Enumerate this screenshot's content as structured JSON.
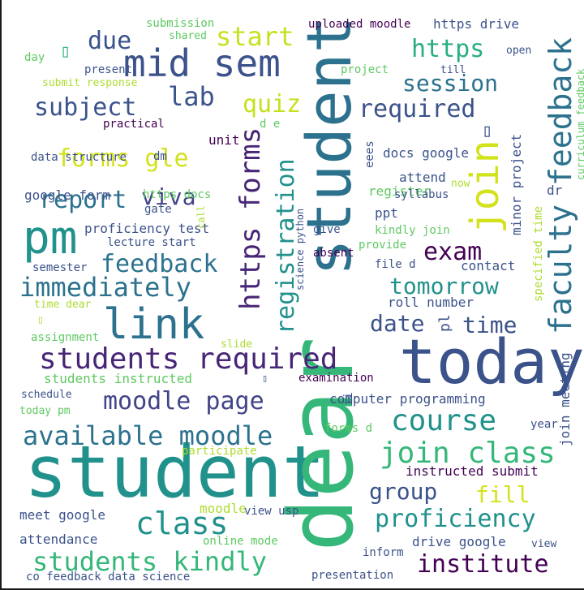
{
  "cloud": {
    "background": "#ffffff",
    "palette": [
      "#440154",
      "#482677",
      "#3b528b",
      "#2c728e",
      "#21918c",
      "#28ae80",
      "#5ec962",
      "#addc30",
      "#fde725"
    ],
    "words": [
      {
        "text": "student",
        "color": "#21918c"
      },
      {
        "text": "dear",
        "color": "#35b779"
      },
      {
        "text": "today",
        "color": "#3b528b"
      },
      {
        "text": "pm",
        "color": "#21918c"
      },
      {
        "text": "student",
        "color": "#2c728e"
      },
      {
        "text": "join",
        "color": "#d2e21b"
      },
      {
        "text": "faculty feedback",
        "color": "#2c728e"
      },
      {
        "text": "mid sem",
        "color": "#3b528b"
      },
      {
        "text": "link",
        "color": "#2c728e"
      },
      {
        "text": "students required",
        "color": "#482677"
      },
      {
        "text": "https forms",
        "color": "#482677"
      },
      {
        "text": "registration",
        "color": "#21918c"
      },
      {
        "text": "join class",
        "color": "#35b779"
      },
      {
        "text": "available moodle",
        "color": "#2c728e"
      },
      {
        "text": "course",
        "color": "#21918c"
      },
      {
        "text": "students kindly",
        "color": "#35b779"
      },
      {
        "text": "proficiency",
        "color": "#21918c"
      },
      {
        "text": "institute",
        "color": "#440154"
      },
      {
        "text": "class",
        "color": "#21918c"
      },
      {
        "text": "moodle page",
        "color": "#414487"
      },
      {
        "text": "immediately",
        "color": "#2c728e"
      },
      {
        "text": "report",
        "color": "#2c728e"
      },
      {
        "text": "feedback",
        "color": "#2c728e"
      },
      {
        "text": "subject",
        "color": "#3b528b"
      },
      {
        "text": "forms gle",
        "color": "#d2e21b"
      },
      {
        "text": "viva",
        "color": "#414487"
      },
      {
        "text": "lab",
        "color": "#3b528b"
      },
      {
        "text": "due",
        "color": "#3b528b"
      },
      {
        "text": "start",
        "color": "#c8e020"
      },
      {
        "text": "https",
        "color": "#28ae80"
      },
      {
        "text": "session",
        "color": "#2c728e"
      },
      {
        "text": "required",
        "color": "#3b528b"
      },
      {
        "text": "quiz",
        "color": "#c8e020"
      },
      {
        "text": "exam",
        "color": "#440154"
      },
      {
        "text": "tomorrow",
        "color": "#21918c"
      },
      {
        "text": "date",
        "color": "#3b528b"
      },
      {
        "text": "time",
        "color": "#3b528b"
      },
      {
        "text": "group",
        "color": "#3b528b"
      },
      {
        "text": "fill",
        "color": "#d2e21b"
      },
      {
        "text": "contact",
        "color": "#3b528b"
      },
      {
        "text": "roll number",
        "color": "#3b528b"
      },
      {
        "text": "google form",
        "color": "#3b528b"
      },
      {
        "text": "proficiency test",
        "color": "#3b528b"
      },
      {
        "text": "computer programming",
        "color": "#3b528b"
      },
      {
        "text": "instructed submit",
        "color": "#440154"
      },
      {
        "text": "students instructed",
        "color": "#5ec962"
      },
      {
        "text": "meet google",
        "color": "#3b528b"
      },
      {
        "text": "attendance",
        "color": "#3b528b"
      },
      {
        "text": "drive google",
        "color": "#3b528b"
      },
      {
        "text": "register",
        "color": "#5ec962"
      },
      {
        "text": "attend",
        "color": "#3b528b"
      },
      {
        "text": "docs google",
        "color": "#3b528b"
      },
      {
        "text": "ppt",
        "color": "#3b528b"
      },
      {
        "text": "kindly join",
        "color": "#5ec962"
      },
      {
        "text": "uploaded moodle",
        "color": "#440154"
      },
      {
        "text": "https drive",
        "color": "#3b528b"
      },
      {
        "text": "submission",
        "color": "#5ec962"
      },
      {
        "text": "shared",
        "color": "#5ec962"
      },
      {
        "text": "day",
        "color": "#5ec962"
      },
      {
        "text": "present",
        "color": "#3b528b"
      },
      {
        "text": "submit response",
        "color": "#addc30"
      },
      {
        "text": "project",
        "color": "#5ec962"
      },
      {
        "text": "till",
        "color": "#3b528b"
      },
      {
        "text": "open",
        "color": "#3b528b"
      },
      {
        "text": "practical",
        "color": "#440154"
      },
      {
        "text": "unit",
        "color": "#440154"
      },
      {
        "text": "d e",
        "color": "#5ec962"
      },
      {
        "text": "data structure",
        "color": "#3b528b"
      },
      {
        "text": "dm",
        "color": "#3b528b"
      },
      {
        "text": "eees",
        "color": "#3b528b"
      },
      {
        "text": "syllabus",
        "color": "#3b528b"
      },
      {
        "text": "now",
        "color": "#addc30"
      },
      {
        "text": "https docs",
        "color": "#5ec962"
      },
      {
        "text": "gate",
        "color": "#3b528b"
      },
      {
        "text": "lecture start",
        "color": "#3b528b"
      },
      {
        "text": "semester",
        "color": "#3b528b"
      },
      {
        "text": "absent",
        "color": "#440154"
      },
      {
        "text": "give",
        "color": "#3b528b"
      },
      {
        "text": "provide",
        "color": "#5ec962"
      },
      {
        "text": "file d",
        "color": "#3b528b"
      },
      {
        "text": "time dear",
        "color": "#addc30"
      },
      {
        "text": "assignment",
        "color": "#5ec962"
      },
      {
        "text": "slide",
        "color": "#addc30"
      },
      {
        "text": "pl",
        "color": "#3b528b"
      },
      {
        "text": "examination",
        "color": "#440154"
      },
      {
        "text": "schedule",
        "color": "#3b528b"
      },
      {
        "text": "today pm",
        "color": "#5ec962"
      },
      {
        "text": "ii",
        "color": "#3b528b"
      },
      {
        "text": "year",
        "color": "#3b528b"
      },
      {
        "text": "forms d",
        "color": "#5ec962"
      },
      {
        "text": "participate",
        "color": "#addc30"
      },
      {
        "text": "moodle",
        "color": "#addc30"
      },
      {
        "text": "view usp",
        "color": "#3b528b"
      },
      {
        "text": "online mode",
        "color": "#5ec962"
      },
      {
        "text": "inform",
        "color": "#3b528b"
      },
      {
        "text": "view",
        "color": "#3b528b"
      },
      {
        "text": "presentation",
        "color": "#3b528b"
      },
      {
        "text": "co feedback data science",
        "color": "#3b528b"
      },
      {
        "text": "minor project",
        "color": "#3b528b"
      },
      {
        "text": "dr",
        "color": "#3b528b"
      },
      {
        "text": "specified time",
        "color": "#addc30"
      },
      {
        "text": "join meeting",
        "color": "#3b528b"
      },
      {
        "text": "curriculum feedback",
        "color": "#5ec962"
      },
      {
        "text": "science python",
        "color": "#3b528b"
      },
      {
        "text": "call",
        "color": "#addc30"
      },
      {
        "text": "▯",
        "color": "#35b779"
      },
      {
        "text": "▯",
        "color": "#3b528b"
      },
      {
        "text": "▯",
        "color": "#addc30"
      },
      {
        "text": "▯",
        "color": "#3b528b"
      }
    ]
  }
}
